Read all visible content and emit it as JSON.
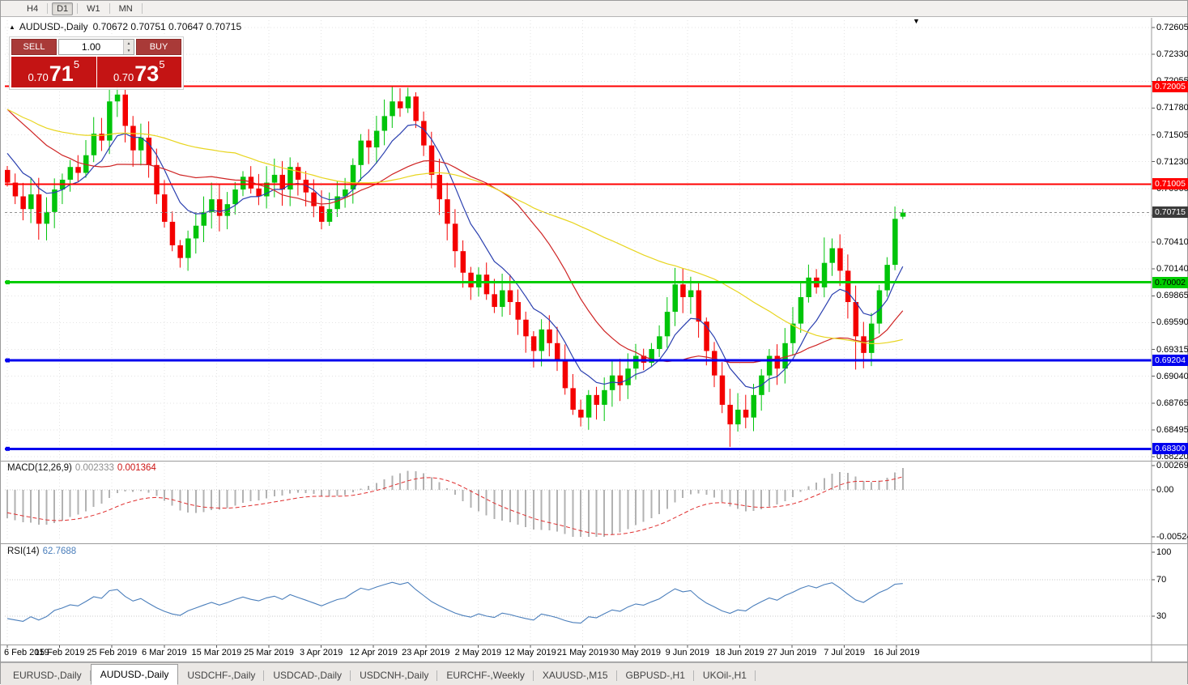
{
  "toolbar": {
    "timeframes": [
      "H4",
      "D1",
      "W1",
      "MN"
    ],
    "active": "D1"
  },
  "chart_header": {
    "marker": "▲",
    "symbol_period": "AUDUSD-,Daily",
    "ohlc": "0.70672 0.70751 0.70647 0.70715"
  },
  "trade_panel": {
    "sell_label": "SELL",
    "buy_label": "BUY",
    "lot_size": "1.00",
    "sell_price": {
      "prefix": "0.70",
      "big": "71",
      "sup": "5"
    },
    "buy_price": {
      "prefix": "0.70",
      "big": "73",
      "sup": "5"
    }
  },
  "price_axis": {
    "labels": [
      "0.72605",
      "0.72330",
      "0.72055",
      "0.71780",
      "0.71505",
      "0.71230",
      "0.70960",
      "0.70685",
      "0.70410",
      "0.70140",
      "0.69865",
      "0.69590",
      "0.69315",
      "0.69040",
      "0.68765",
      "0.68495",
      "0.68220"
    ],
    "badges": [
      {
        "value": "0.72005",
        "price": 0.72005,
        "color": "#ff0000",
        "text": "#ffffff"
      },
      {
        "value": "0.71005",
        "price": 0.71005,
        "color": "#ff0000",
        "text": "#ffffff"
      },
      {
        "value": "0.70715",
        "price": 0.70715,
        "color": "#3c3c3c",
        "text": "#ffffff"
      },
      {
        "value": "0.70002",
        "price": 0.70002,
        "color": "#00cc00",
        "text": "#000000"
      },
      {
        "value": "0.69204",
        "price": 0.69204,
        "color": "#0000ee",
        "text": "#ffffff"
      },
      {
        "value": "0.68300",
        "price": 0.683,
        "color": "#0000ee",
        "text": "#ffffff"
      }
    ]
  },
  "hlines": [
    {
      "price": 0.72005,
      "color": "#ff0000",
      "width": 2,
      "handle": false
    },
    {
      "price": 0.71005,
      "color": "#ff0000",
      "width": 2,
      "handle": false
    },
    {
      "price": 0.70002,
      "color": "#00cc00",
      "width": 3,
      "handle": true
    },
    {
      "price": 0.69204,
      "color": "#0000ee",
      "width": 3,
      "handle": true
    },
    {
      "price": 0.683,
      "color": "#0000ee",
      "width": 3,
      "handle": true
    }
  ],
  "current_price": 0.70715,
  "chart_data": {
    "type": "candlestick",
    "symbol": "AUDUSD",
    "period": "Daily",
    "price_range": [
      0.6822,
      0.72605
    ],
    "first_open": 0.7115,
    "closes": [
      0.7102,
      0.7088,
      0.7075,
      0.709,
      0.706,
      0.7072,
      0.7095,
      0.7105,
      0.7118,
      0.7112,
      0.713,
      0.7152,
      0.7145,
      0.7185,
      0.7192,
      0.716,
      0.7135,
      0.7148,
      0.712,
      0.709,
      0.7062,
      0.7038,
      0.7025,
      0.7045,
      0.7058,
      0.7072,
      0.7085,
      0.7068,
      0.708,
      0.7095,
      0.7108,
      0.7096,
      0.7088,
      0.7102,
      0.711,
      0.7095,
      0.7118,
      0.7105,
      0.7092,
      0.7078,
      0.7062,
      0.7075,
      0.7088,
      0.7095,
      0.712,
      0.7145,
      0.7138,
      0.7155,
      0.717,
      0.7185,
      0.7178,
      0.719,
      0.7165,
      0.714,
      0.711,
      0.7085,
      0.706,
      0.7032,
      0.701,
      0.6995,
      0.7008,
      0.6988,
      0.6975,
      0.6992,
      0.698,
      0.6962,
      0.6945,
      0.693,
      0.6952,
      0.6938,
      0.692,
      0.6892,
      0.687,
      0.6862,
      0.6885,
      0.6875,
      0.689,
      0.6905,
      0.6895,
      0.6912,
      0.6925,
      0.6918,
      0.6932,
      0.6945,
      0.697,
      0.6998,
      0.6985,
      0.6992,
      0.696,
      0.693,
      0.6905,
      0.6875,
      0.6855,
      0.687,
      0.6862,
      0.6885,
      0.6905,
      0.6925,
      0.6912,
      0.6938,
      0.6958,
      0.6985,
      0.7005,
      0.6995,
      0.702,
      0.7035,
      0.7012,
      0.698,
      0.6945,
      0.6928,
      0.6958,
      0.6992,
      0.7018,
      0.7065,
      0.70715
    ],
    "last_candle": {
      "open": 0.70672,
      "high": 0.70751,
      "low": 0.70647,
      "close": 0.70715
    },
    "wick_anchors": {
      "49": {
        "high": 0.7201
      },
      "92": {
        "low": 0.6832
      },
      "104": {
        "high": 0.7046
      },
      "108": {
        "low": 0.6911
      }
    },
    "bull_color": "#00c40a",
    "bear_color": "#f40000",
    "moving_averages": [
      {
        "period": 8,
        "type": "EMA",
        "color": "#2a3faf"
      },
      {
        "period": 21,
        "type": "SMA",
        "color": "#cf2424"
      },
      {
        "period": 50,
        "type": "SMA",
        "color": "#e8d51f"
      }
    ]
  },
  "macd": {
    "label": "MACD(12,26,9)",
    "main": "0.002333",
    "signal": "0.001364",
    "axis": [
      "0.002694",
      "0.00",
      "-0.005242"
    ],
    "range": [
      -0.005242,
      0.002694
    ],
    "histogram_color": "#b2b2b2",
    "signal_color": "#e03030"
  },
  "rsi": {
    "label": "RSI(14)",
    "value": "62.7688",
    "axis": [
      "100",
      "70",
      "30"
    ],
    "levels": [
      70,
      30
    ],
    "color": "#4a7ebb"
  },
  "time_axis": {
    "labels": [
      "6 Feb 2019",
      "15 Feb 2019",
      "25 Feb 2019",
      "6 Mar 2019",
      "15 Mar 2019",
      "25 Mar 2019",
      "3 Apr 2019",
      "12 Apr 2019",
      "23 Apr 2019",
      "2 May 2019",
      "12 May 2019",
      "21 May 2019",
      "30 May 2019",
      "9 Jun 2019",
      "18 Jun 2019",
      "27 Jun 2019",
      "7 Jul 2019",
      "16 Jul 2019"
    ]
  },
  "tabs": [
    {
      "label": "EURUSD-,Daily",
      "active": false
    },
    {
      "label": "AUDUSD-,Daily",
      "active": true
    },
    {
      "label": "USDCHF-,Daily",
      "active": false
    },
    {
      "label": "USDCAD-,Daily",
      "active": false
    },
    {
      "label": "USDCNH-,Daily",
      "active": false
    },
    {
      "label": "EURCHF-,Weekly",
      "active": false
    },
    {
      "label": "XAUUSD-,M15",
      "active": false
    },
    {
      "label": "GBPUSD-,H1",
      "active": false
    },
    {
      "label": "UKOil-,H1",
      "active": false
    }
  ],
  "icons": {
    "spin_up": "▲",
    "spin_down": "▼",
    "chart_shift": "▼"
  }
}
